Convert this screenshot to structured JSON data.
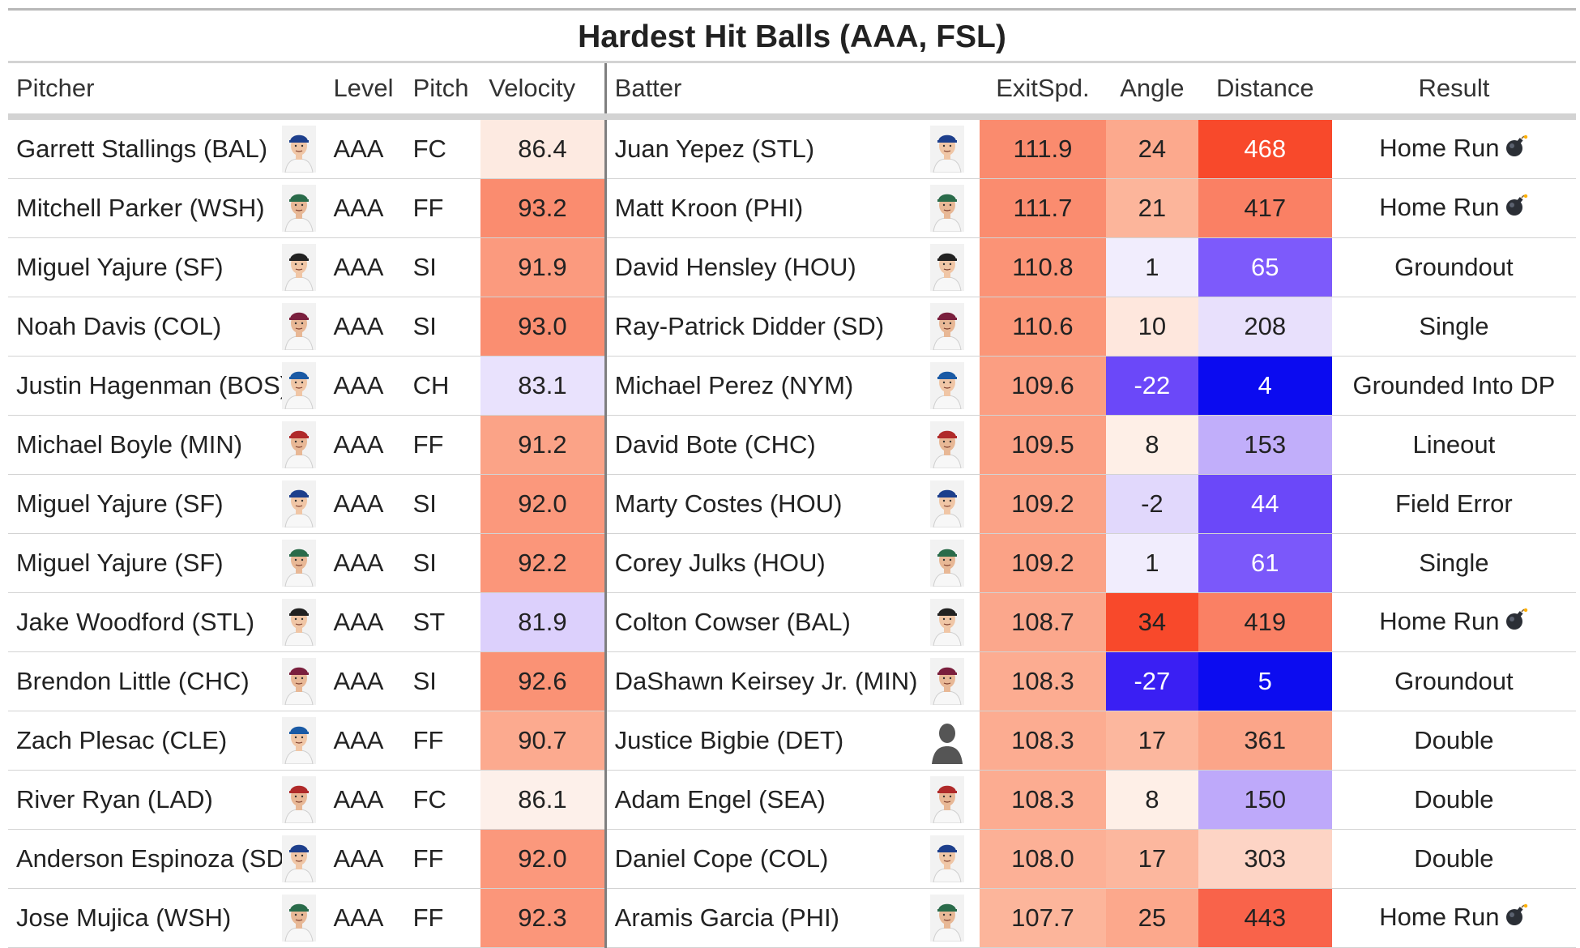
{
  "title": "Hardest Hit Balls (AAA, FSL)",
  "columns": {
    "pitcher": "Pitcher",
    "level": "Level",
    "pitch": "Pitch",
    "velocity": "Velocity",
    "batter": "Batter",
    "exit_speed": "ExitSpd.",
    "angle": "Angle",
    "distance": "Distance",
    "result": "Result"
  },
  "rows": [
    {
      "pitcher": "Garrett Stallings (BAL)",
      "level": "AAA",
      "pitch": "FC",
      "velocity": "86.4",
      "batter": "Juan Yepez (STL)",
      "exit_speed": "111.9",
      "angle": "24",
      "distance": "468",
      "result": "Home Run",
      "bomb": true,
      "colors": {
        "velocity": "#fdeae1",
        "exit_speed": "#fa8b6e",
        "angle": "#fca98d",
        "distance": "#f8492b"
      },
      "dark": {
        "distance": true
      }
    },
    {
      "pitcher": "Mitchell Parker (WSH)",
      "level": "AAA",
      "pitch": "FF",
      "velocity": "93.2",
      "batter": "Matt Kroon (PHI)",
      "exit_speed": "111.7",
      "angle": "21",
      "distance": "417",
      "result": "Home Run",
      "bomb": true,
      "colors": {
        "velocity": "#fa8c6f",
        "exit_speed": "#fa8c6f",
        "angle": "#fcb59b",
        "distance": "#fa8064"
      },
      "dark": {}
    },
    {
      "pitcher": "Miguel Yajure (SF)",
      "level": "AAA",
      "pitch": "SI",
      "velocity": "91.9",
      "batter": "David Hensley (HOU)",
      "exit_speed": "110.8",
      "angle": "1",
      "distance": "65",
      "result": "Groundout",
      "bomb": false,
      "colors": {
        "velocity": "#fb9a7e",
        "exit_speed": "#fb9376",
        "angle": "#f1edfd",
        "distance": "#7d5afb"
      },
      "dark": {
        "distance": true
      }
    },
    {
      "pitcher": "Noah Davis (COL)",
      "level": "AAA",
      "pitch": "SI",
      "velocity": "93.0",
      "batter": "Ray-Patrick Didder (SD)",
      "exit_speed": "110.6",
      "angle": "10",
      "distance": "208",
      "result": "Single",
      "bomb": false,
      "colors": {
        "velocity": "#fa8e71",
        "exit_speed": "#fb9678",
        "angle": "#fee7dd",
        "distance": "#e8e0fc"
      },
      "dark": {}
    },
    {
      "pitcher": "Justin Hagenman (BOS)",
      "level": "AAA",
      "pitch": "CH",
      "velocity": "83.1",
      "batter": "Michael Perez (NYM)",
      "exit_speed": "109.6",
      "angle": "-22",
      "distance": "4",
      "result": "Grounded Into DP",
      "bomb": false,
      "colors": {
        "velocity": "#e9e2fd",
        "exit_speed": "#fb9e82",
        "angle": "#6b48f9",
        "distance": "#0b0bf0"
      },
      "dark": {
        "angle": true,
        "distance": true
      }
    },
    {
      "pitcher": "Michael Boyle (MIN)",
      "level": "AAA",
      "pitch": "FF",
      "velocity": "91.2",
      "batter": "David Bote (CHC)",
      "exit_speed": "109.5",
      "angle": "8",
      "distance": "153",
      "result": "Lineout",
      "bomb": false,
      "colors": {
        "velocity": "#fba387",
        "exit_speed": "#fb9f83",
        "angle": "#feefe7",
        "distance": "#c1aefa"
      },
      "dark": {}
    },
    {
      "pitcher": "Miguel Yajure (SF)",
      "level": "AAA",
      "pitch": "SI",
      "velocity": "92.0",
      "batter": "Marty Costes (HOU)",
      "exit_speed": "109.2",
      "angle": "-2",
      "distance": "44",
      "result": "Field Error",
      "bomb": false,
      "colors": {
        "velocity": "#fb987c",
        "exit_speed": "#fba286",
        "angle": "#e1d8fc",
        "distance": "#6b48f9"
      },
      "dark": {
        "distance": true
      }
    },
    {
      "pitcher": "Miguel Yajure (SF)",
      "level": "AAA",
      "pitch": "SI",
      "velocity": "92.2",
      "batter": "Corey Julks (HOU)",
      "exit_speed": "109.2",
      "angle": "1",
      "distance": "61",
      "result": "Single",
      "bomb": false,
      "colors": {
        "velocity": "#fb967a",
        "exit_speed": "#fba286",
        "angle": "#f1edfd",
        "distance": "#7b58fa"
      },
      "dark": {
        "distance": true
      }
    },
    {
      "pitcher": "Jake Woodford (STL)",
      "level": "AAA",
      "pitch": "ST",
      "velocity": "81.9",
      "batter": "Colton Cowser (BAL)",
      "exit_speed": "108.7",
      "angle": "34",
      "distance": "419",
      "result": "Home Run",
      "bomb": true,
      "colors": {
        "velocity": "#dcd0fc",
        "exit_speed": "#fba78c",
        "angle": "#f8492b",
        "distance": "#fa8064"
      },
      "dark": {}
    },
    {
      "pitcher": "Brendon Little (CHC)",
      "level": "AAA",
      "pitch": "SI",
      "velocity": "92.6",
      "batter": "DaShawn Keirsey Jr. (MIN)",
      "exit_speed": "108.3",
      "angle": "-27",
      "distance": "5",
      "result": "Groundout",
      "bomb": false,
      "colors": {
        "velocity": "#fa9275",
        "exit_speed": "#fcac91",
        "angle": "#3a1ff3",
        "distance": "#0c0cf0"
      },
      "dark": {
        "angle": true,
        "distance": true
      }
    },
    {
      "pitcher": "Zach Plesac (CLE)",
      "level": "AAA",
      "pitch": "FF",
      "velocity": "90.7",
      "batter": "Justice Bigbie (DET)",
      "exit_speed": "108.3",
      "angle": "17",
      "distance": "361",
      "result": "Double",
      "bomb": false,
      "colors": {
        "velocity": "#fcaa8f",
        "exit_speed": "#fcac91",
        "angle": "#fcb79e",
        "distance": "#fba589"
      },
      "dark": {}
    },
    {
      "pitcher": "River Ryan (LAD)",
      "level": "AAA",
      "pitch": "FC",
      "velocity": "86.1",
      "batter": "Adam Engel (SEA)",
      "exit_speed": "108.3",
      "angle": "8",
      "distance": "150",
      "result": "Double",
      "bomb": false,
      "colors": {
        "velocity": "#fdf0ea",
        "exit_speed": "#fcac91",
        "angle": "#feefe7",
        "distance": "#bea9fa"
      },
      "dark": {}
    },
    {
      "pitcher": "Anderson Espinoza (SD)",
      "level": "AAA",
      "pitch": "FF",
      "velocity": "92.0",
      "batter": "Daniel Cope (COL)",
      "exit_speed": "108.0",
      "angle": "17",
      "distance": "303",
      "result": "Double",
      "bomb": false,
      "colors": {
        "velocity": "#fb987c",
        "exit_speed": "#fcb096",
        "angle": "#fcb79e",
        "distance": "#fdd4c5"
      },
      "dark": {}
    },
    {
      "pitcher": "Jose Mujica (WSH)",
      "level": "AAA",
      "pitch": "FF",
      "velocity": "92.3",
      "batter": "Aramis Garcia (PHI)",
      "exit_speed": "107.7",
      "angle": "25",
      "distance": "443",
      "result": "Home Run",
      "bomb": true,
      "colors": {
        "velocity": "#fb967a",
        "exit_speed": "#fcb59b",
        "angle": "#fca88c",
        "distance": "#f9634a"
      },
      "dark": {}
    }
  ]
}
